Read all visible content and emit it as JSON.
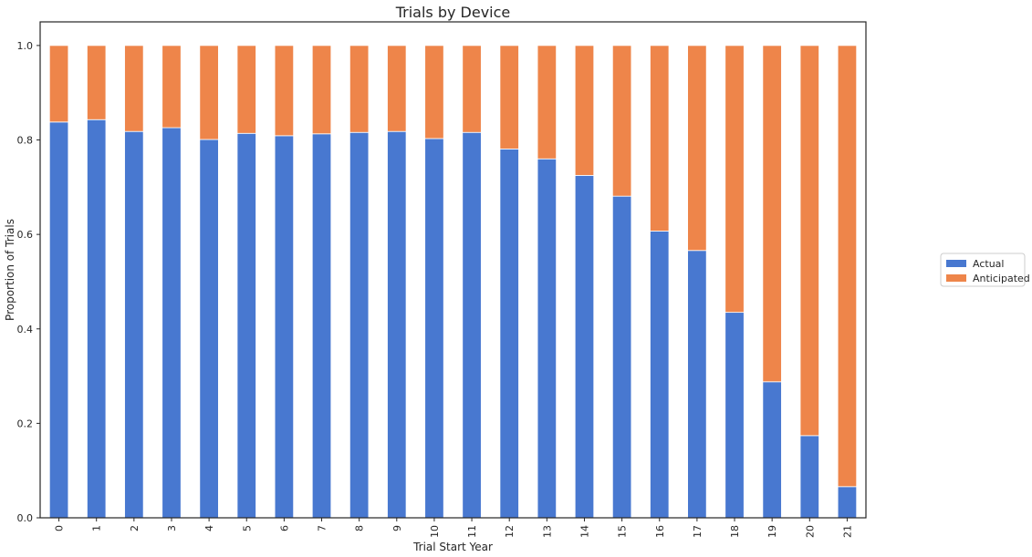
{
  "chart_data": {
    "type": "bar",
    "stacked": true,
    "title": "Trials by Device",
    "xlabel": "Trial Start Year",
    "ylabel": "Proportion of Trials",
    "categories": [
      "0",
      "1",
      "2",
      "3",
      "4",
      "5",
      "6",
      "7",
      "8",
      "9",
      "10",
      "11",
      "12",
      "13",
      "14",
      "15",
      "16",
      "17",
      "18",
      "19",
      "20",
      "21"
    ],
    "ylim": [
      0,
      1.05
    ],
    "yticks": [
      "0.0",
      "0.2",
      "0.4",
      "0.6",
      "0.8",
      "1.0"
    ],
    "grid": false,
    "legend_position": "right",
    "series": [
      {
        "name": "Actual",
        "color": "#4878d0",
        "values": [
          0.838,
          0.843,
          0.818,
          0.826,
          0.801,
          0.814,
          0.809,
          0.813,
          0.816,
          0.818,
          0.803,
          0.816,
          0.781,
          0.76,
          0.725,
          0.681,
          0.607,
          0.566,
          0.435,
          0.288,
          0.174,
          0.066
        ]
      },
      {
        "name": "Anticipated",
        "color": "#ee854a",
        "values": [
          0.162,
          0.157,
          0.182,
          0.174,
          0.199,
          0.186,
          0.191,
          0.187,
          0.184,
          0.182,
          0.197,
          0.184,
          0.219,
          0.24,
          0.275,
          0.319,
          0.393,
          0.434,
          0.565,
          0.712,
          0.826,
          0.934
        ]
      }
    ]
  }
}
